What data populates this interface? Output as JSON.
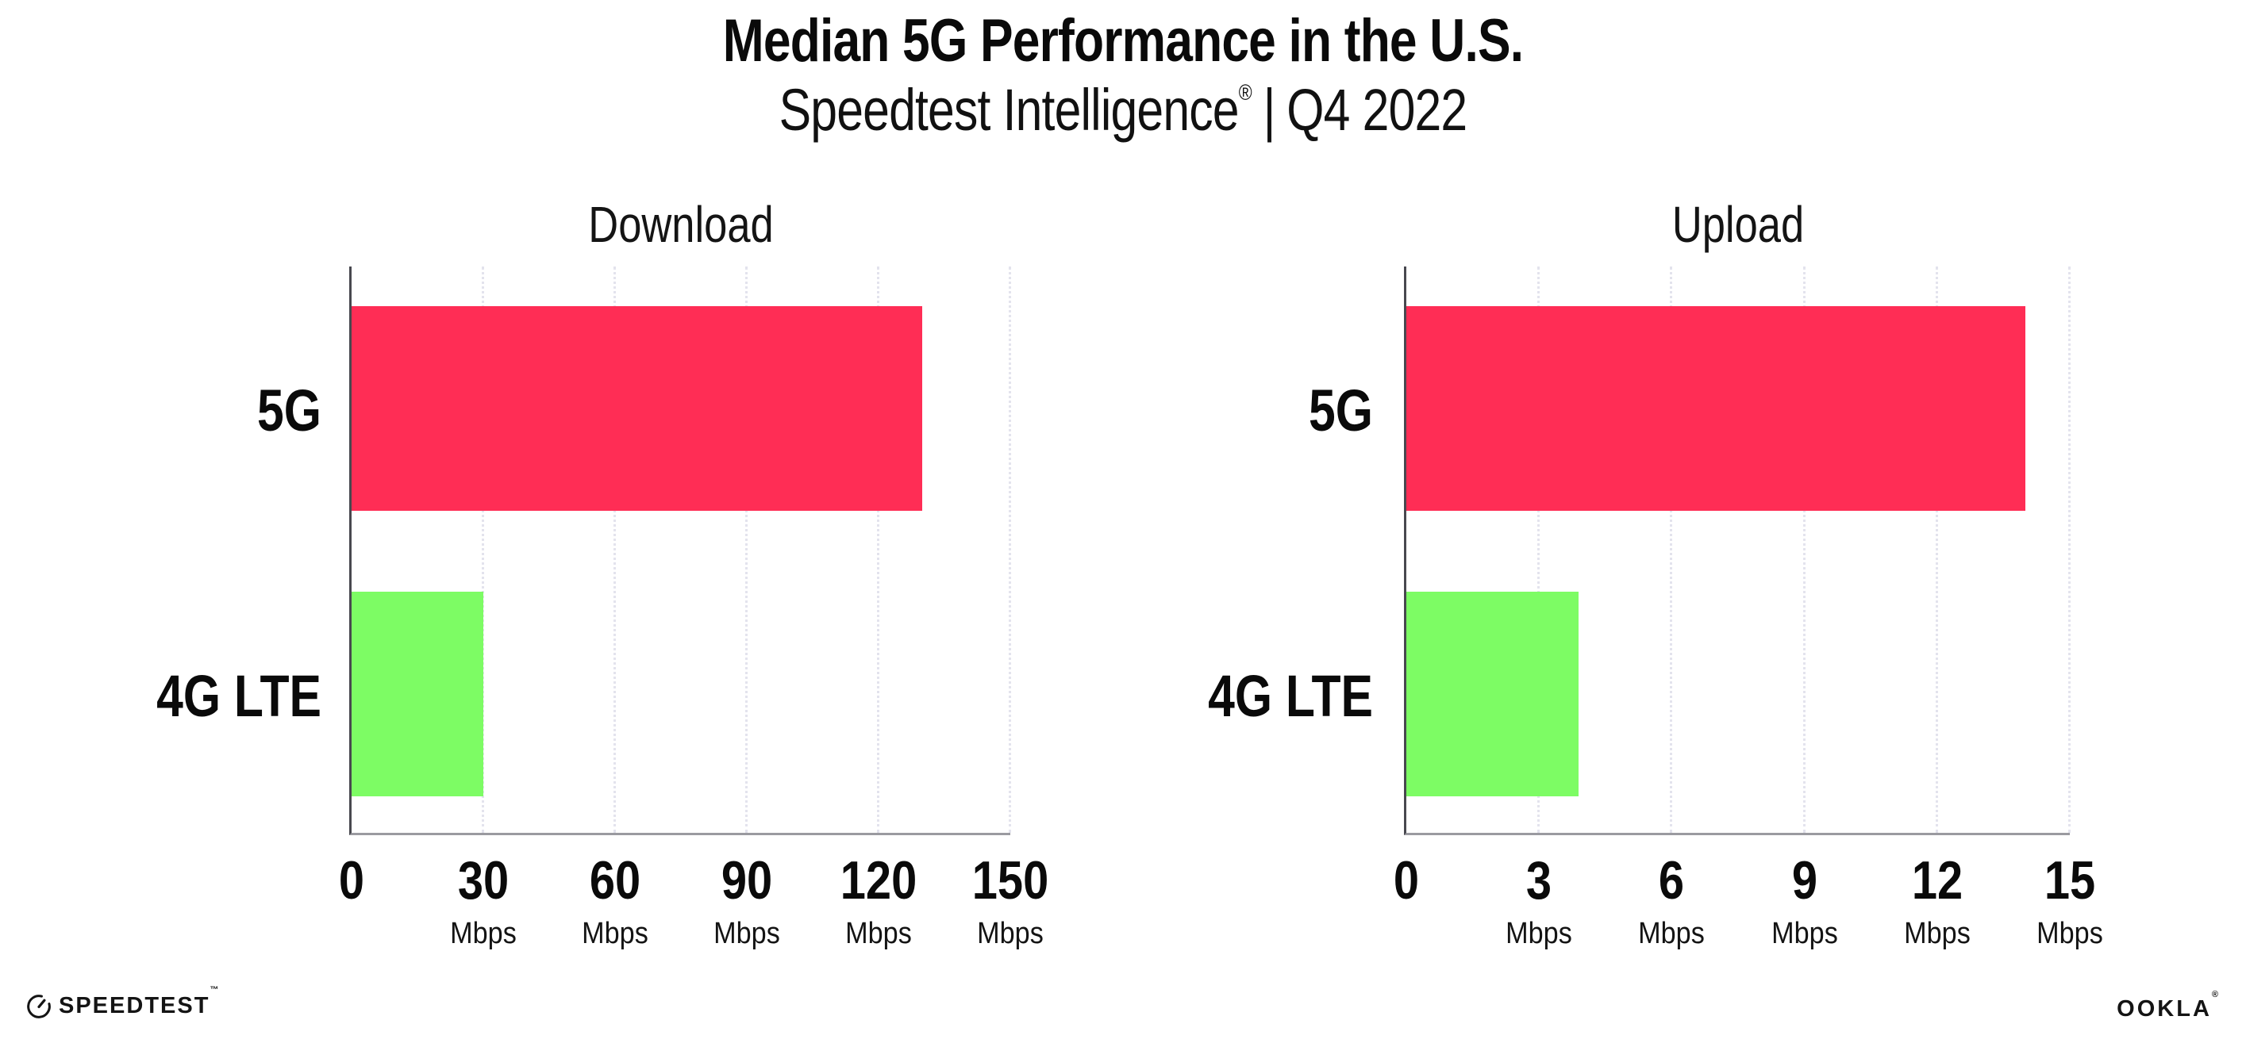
{
  "header": {
    "title": "Median 5G Performance in the U.S.",
    "subtitle_brand": "Speedtest Intelligence",
    "subtitle_reg": "®",
    "subtitle_sep": "|",
    "subtitle_period": "Q4 2022"
  },
  "colors": {
    "bar_5g": "#FF2D55",
    "bar_4g_lte": "#7DFC64",
    "y_axis_line": "#48484F",
    "x_axis_line": "#9A9AA0",
    "gridline": "#E3E3ED",
    "text": "#0A0A0A"
  },
  "footer": {
    "speedtest_label": "SPEEDTEST",
    "speedtest_tm": "™",
    "ookla_label": "OOKLA",
    "ookla_reg": "®"
  },
  "chart_data": [
    {
      "type": "bar",
      "orientation": "horizontal",
      "title": "Download",
      "categories": [
        "5G",
        "4G LTE"
      ],
      "values": [
        130,
        30
      ],
      "unit": "Mbps",
      "xlim": [
        0,
        150
      ],
      "xticks": [
        0,
        30,
        60,
        90,
        120,
        150
      ],
      "grid": "dotted-vertical",
      "legend": "none",
      "bar_colors": [
        "#FF2D55",
        "#7DFC64"
      ]
    },
    {
      "type": "bar",
      "orientation": "horizontal",
      "title": "Upload",
      "categories": [
        "5G",
        "4G LTE"
      ],
      "values": [
        14,
        3.9
      ],
      "unit": "Mbps",
      "xlim": [
        0,
        15
      ],
      "xticks": [
        0,
        3,
        6,
        9,
        12,
        15
      ],
      "grid": "dotted-vertical",
      "legend": "none",
      "bar_colors": [
        "#FF2D55",
        "#7DFC64"
      ]
    }
  ]
}
